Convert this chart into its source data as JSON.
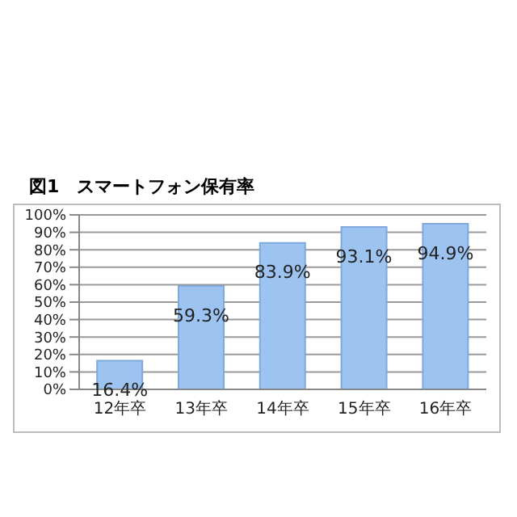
{
  "chart_data": {
    "type": "bar",
    "title": "図1　スマートフォン保有率",
    "categories": [
      "12年卒",
      "13年卒",
      "14年卒",
      "15年卒",
      "16年卒"
    ],
    "values": [
      16.4,
      59.3,
      83.9,
      93.1,
      94.9
    ],
    "value_labels": [
      "16.4%",
      "59.3%",
      "83.9%",
      "93.1%",
      "94.9%"
    ],
    "color": "#9dc3f0",
    "ylim": [
      0,
      100
    ],
    "yticks": [
      {
        "value": 0,
        "label": "0%"
      },
      {
        "value": 10,
        "label": "10%"
      },
      {
        "value": 20,
        "label": "20%"
      },
      {
        "value": 30,
        "label": "30%"
      },
      {
        "value": 40,
        "label": "40%"
      },
      {
        "value": 50,
        "label": "50%"
      },
      {
        "value": 60,
        "label": "60%"
      },
      {
        "value": 70,
        "label": "70%"
      },
      {
        "value": 80,
        "label": "80%"
      },
      {
        "value": 90,
        "label": "90%"
      },
      {
        "value": 100,
        "label": "100%"
      }
    ],
    "grid": "y",
    "legend": false
  }
}
